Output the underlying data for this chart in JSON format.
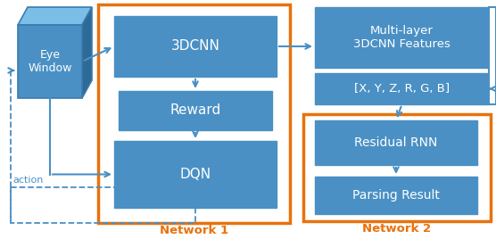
{
  "bg_color": "#ffffff",
  "box_fill": "#4a90c4",
  "box_edge": "#5a9fce",
  "box_text_color": "white",
  "orange_border": "#e8720c",
  "arrow_color": "#4a90c4",
  "network1_label": "Network 1",
  "network2_label": "Network 2",
  "eye_window_label": "Eye\nWindow",
  "cnn_label": "3DCNN",
  "reward_label": "Reward",
  "dqn_label": "DQN",
  "multilayer_label": "Multi-layer\n3DCNN Features",
  "xyz_label": "[X, Y, Z, R, G, B]",
  "rnn_label": "Residual RNN",
  "parsing_label": "Parsing Result",
  "action_label": "action",
  "cube_front": "#4a90c4",
  "cube_top": "#7bbfe8",
  "cube_right": "#2e6a96",
  "cube_edge": "#3a7ab0"
}
